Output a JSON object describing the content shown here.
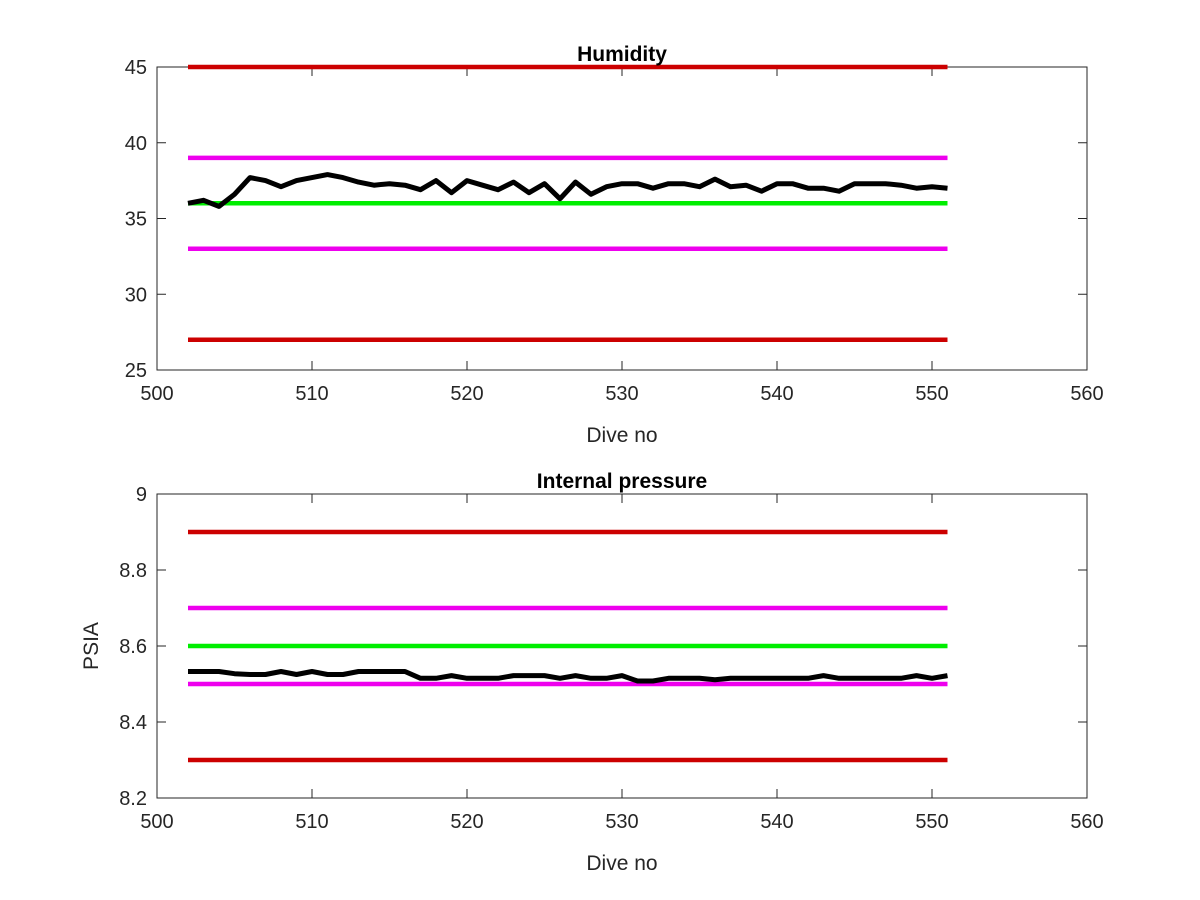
{
  "colors": {
    "background": "#ffffff",
    "axis": "#262626",
    "data_line": "#000000",
    "red_limit": "#cc0000",
    "magenta_limit": "#ee00ee",
    "green_nominal": "#00ee00"
  },
  "chart_data": [
    {
      "type": "line",
      "title": "Humidity",
      "xlabel": "Dive no",
      "ylabel": "",
      "xlim": [
        500,
        560
      ],
      "ylim": [
        25,
        45
      ],
      "xticks": [
        "500",
        "510",
        "520",
        "530",
        "540",
        "550",
        "560"
      ],
      "yticks": [
        "25",
        "30",
        "35",
        "40",
        "45"
      ],
      "grid": false,
      "series": [
        {
          "role": "upper-limit",
          "color": "#cc0000",
          "x": [
            502,
            551
          ],
          "y": [
            45,
            45
          ]
        },
        {
          "role": "upper-warning",
          "color": "#ee00ee",
          "x": [
            502,
            551
          ],
          "y": [
            39,
            39
          ]
        },
        {
          "role": "nominal",
          "color": "#00ee00",
          "x": [
            502,
            551
          ],
          "y": [
            36,
            36
          ]
        },
        {
          "role": "lower-warning",
          "color": "#ee00ee",
          "x": [
            502,
            551
          ],
          "y": [
            33,
            33
          ]
        },
        {
          "role": "lower-limit",
          "color": "#cc0000",
          "x": [
            502,
            551
          ],
          "y": [
            27,
            27
          ]
        },
        {
          "role": "measurement",
          "color": "#000000",
          "x": [
            502,
            503,
            504,
            505,
            506,
            507,
            508,
            509,
            510,
            511,
            512,
            513,
            514,
            515,
            516,
            517,
            518,
            519,
            520,
            521,
            522,
            523,
            524,
            525,
            526,
            527,
            528,
            529,
            530,
            531,
            532,
            533,
            534,
            535,
            536,
            537,
            538,
            539,
            540,
            541,
            542,
            543,
            544,
            545,
            546,
            547,
            548,
            549,
            550,
            551
          ],
          "y": [
            36.0,
            36.2,
            35.8,
            36.6,
            37.7,
            37.5,
            37.1,
            37.5,
            37.7,
            37.9,
            37.7,
            37.4,
            37.2,
            37.3,
            37.2,
            36.9,
            37.5,
            36.7,
            37.5,
            37.2,
            36.9,
            37.4,
            36.7,
            37.3,
            36.3,
            37.4,
            36.6,
            37.1,
            37.3,
            37.3,
            37.0,
            37.3,
            37.3,
            37.1,
            37.6,
            37.1,
            37.2,
            36.8,
            37.3,
            37.3,
            37.0,
            37.0,
            36.8,
            37.3,
            37.3,
            37.3,
            37.2,
            37.0,
            37.1,
            37.0
          ]
        }
      ]
    },
    {
      "type": "line",
      "title": "Internal pressure",
      "xlabel": "Dive no",
      "ylabel": "PSIA",
      "xlim": [
        500,
        560
      ],
      "ylim": [
        8.2,
        9
      ],
      "xticks": [
        "500",
        "510",
        "520",
        "530",
        "540",
        "550",
        "560"
      ],
      "yticks": [
        "8.2",
        "8.4",
        "8.6",
        "8.8",
        "9"
      ],
      "grid": false,
      "series": [
        {
          "role": "upper-limit",
          "color": "#cc0000",
          "x": [
            502,
            551
          ],
          "y": [
            8.9,
            8.9
          ]
        },
        {
          "role": "upper-warning",
          "color": "#ee00ee",
          "x": [
            502,
            551
          ],
          "y": [
            8.7,
            8.7
          ]
        },
        {
          "role": "nominal",
          "color": "#00ee00",
          "x": [
            502,
            551
          ],
          "y": [
            8.6,
            8.6
          ]
        },
        {
          "role": "lower-warning",
          "color": "#ee00ee",
          "x": [
            502,
            551
          ],
          "y": [
            8.5,
            8.5
          ]
        },
        {
          "role": "lower-limit",
          "color": "#cc0000",
          "x": [
            502,
            551
          ],
          "y": [
            8.3,
            8.3
          ]
        },
        {
          "role": "measurement",
          "color": "#000000",
          "x": [
            502,
            503,
            504,
            505,
            506,
            507,
            508,
            509,
            510,
            511,
            512,
            513,
            514,
            515,
            516,
            517,
            518,
            519,
            520,
            521,
            522,
            523,
            524,
            525,
            526,
            527,
            528,
            529,
            530,
            531,
            532,
            533,
            534,
            535,
            536,
            537,
            538,
            539,
            540,
            541,
            542,
            543,
            544,
            545,
            546,
            547,
            548,
            549,
            550,
            551
          ],
          "y": [
            8.533,
            8.533,
            8.533,
            8.527,
            8.525,
            8.525,
            8.533,
            8.525,
            8.533,
            8.525,
            8.525,
            8.533,
            8.533,
            8.533,
            8.533,
            8.515,
            8.515,
            8.522,
            8.515,
            8.515,
            8.515,
            8.522,
            8.522,
            8.522,
            8.515,
            8.522,
            8.515,
            8.515,
            8.522,
            8.508,
            8.508,
            8.515,
            8.515,
            8.515,
            8.511,
            8.515,
            8.515,
            8.515,
            8.515,
            8.515,
            8.515,
            8.522,
            8.515,
            8.515,
            8.515,
            8.515,
            8.515,
            8.522,
            8.515,
            8.522
          ]
        }
      ]
    }
  ]
}
